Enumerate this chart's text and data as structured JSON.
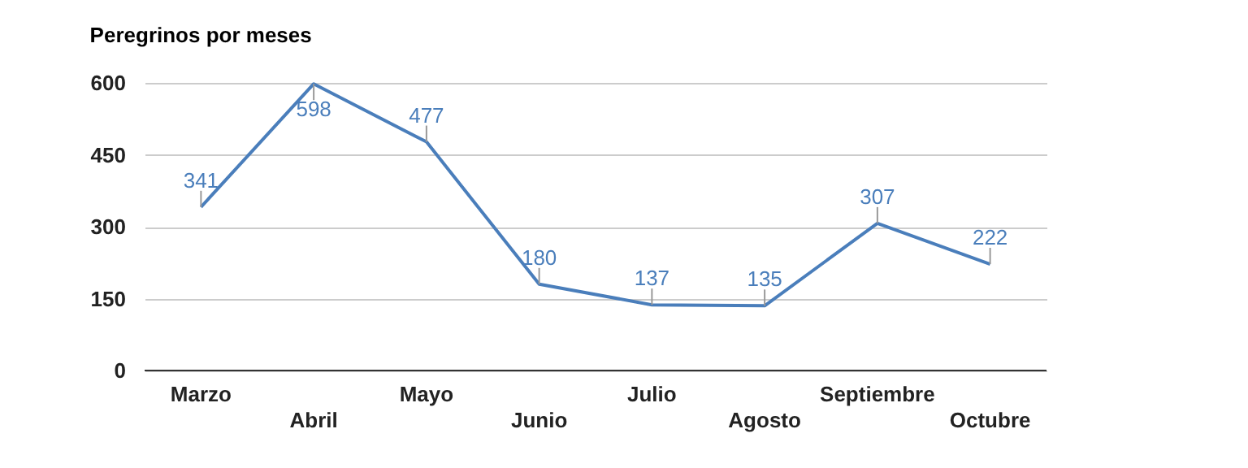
{
  "chart_data": {
    "type": "line",
    "title": "Peregrinos por meses",
    "categories": [
      "Marzo",
      "Abril",
      "Mayo",
      "Junio",
      "Julio",
      "Agosto",
      "Septiembre",
      "Octubre"
    ],
    "series": [
      {
        "color": "#4a7ebb",
        "values": [
          341,
          598,
          477,
          180,
          137,
          135,
          307,
          222
        ]
      }
    ],
    "ylim": [
      0,
      600
    ],
    "yticks": [
      0,
      150,
      300,
      450,
      600
    ],
    "grid": "y",
    "data_labels": true,
    "marker": "none",
    "line_style": "solid"
  }
}
